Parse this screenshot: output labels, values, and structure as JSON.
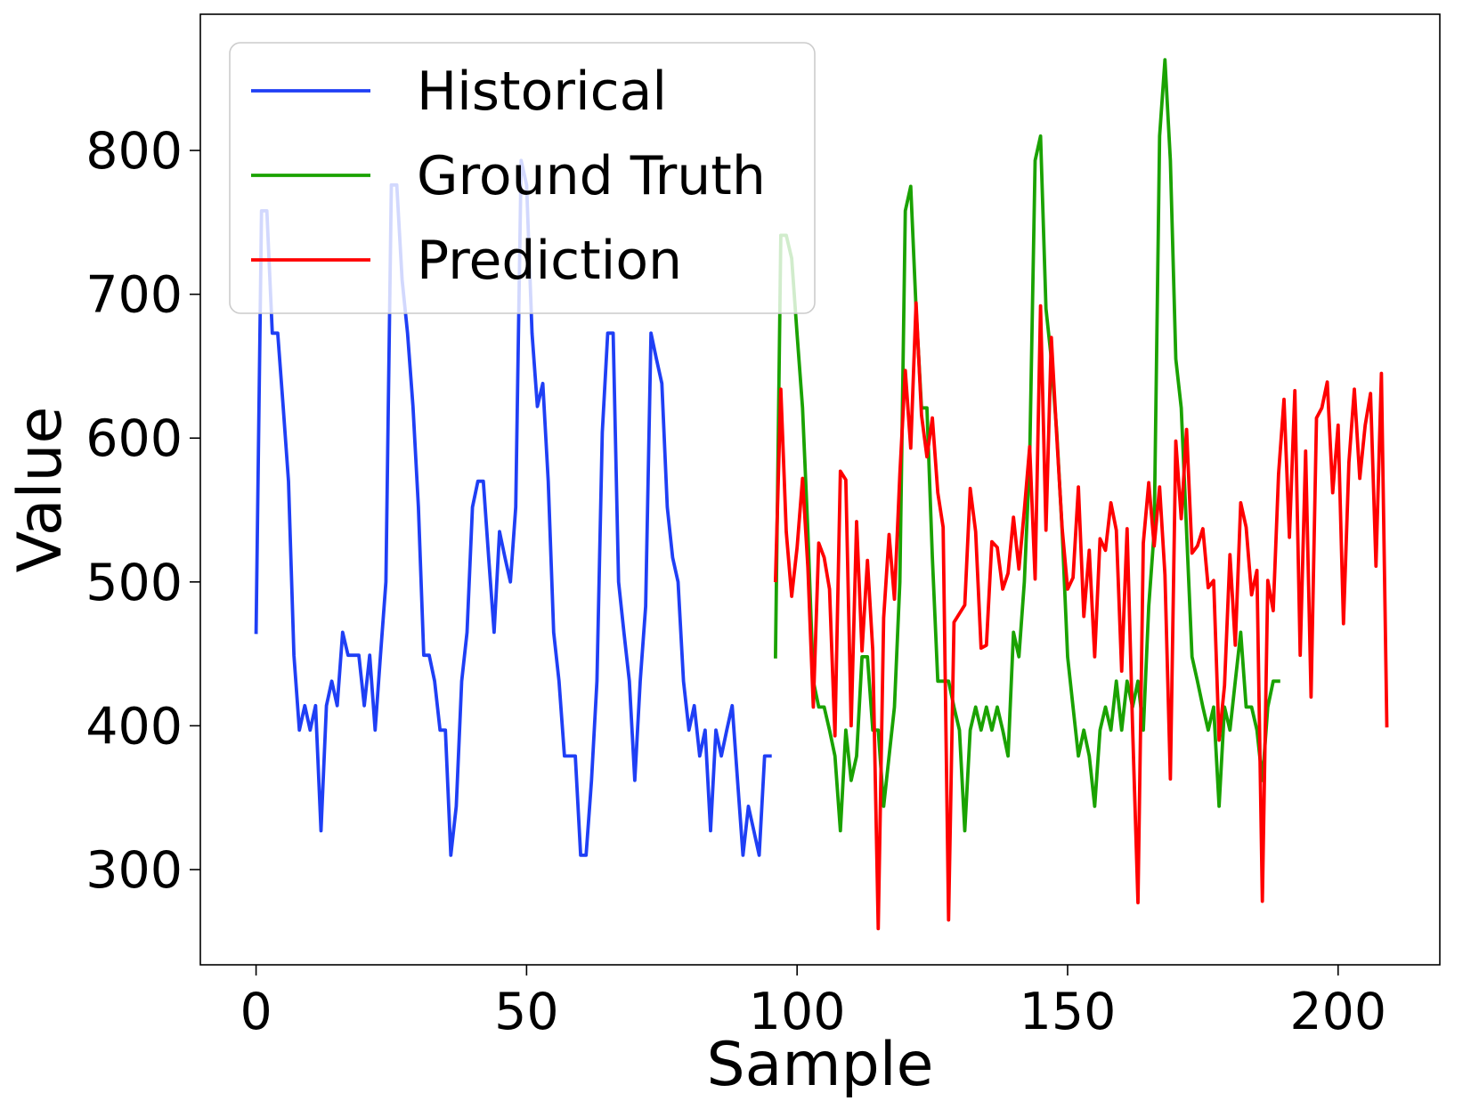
{
  "chart_data": {
    "type": "line",
    "title": "",
    "xlabel": "Sample",
    "ylabel": "Value",
    "xlim": [
      -10.3,
      218.8
    ],
    "ylim": [
      233.8,
      894.7
    ],
    "xticks": [
      0,
      50,
      100,
      150,
      200
    ],
    "yticks": [
      300,
      400,
      500,
      600,
      700,
      800
    ],
    "grid": false,
    "legend_position": "top-left",
    "series": [
      {
        "name": "Historical",
        "color": "#1f3ff5",
        "x_start": 0,
        "values": [
          465,
          758,
          758,
          673,
          673,
          622,
          570,
          449,
          397,
          414,
          397,
          414,
          327,
          414,
          431,
          414,
          465,
          449,
          449,
          449,
          414,
          449,
          397,
          449,
          500,
          776,
          776,
          710,
          673,
          622,
          552,
          449,
          449,
          431,
          397,
          397,
          310,
          344,
          431,
          465,
          552,
          570,
          570,
          517,
          465,
          535,
          517,
          500,
          552,
          793,
          776,
          673,
          622,
          638,
          570,
          465,
          431,
          379,
          379,
          379,
          310,
          310,
          362,
          431,
          604,
          673,
          673,
          500,
          465,
          431,
          362,
          431,
          483,
          673,
          655,
          638,
          552,
          517,
          500,
          431,
          397,
          414,
          379,
          397,
          327,
          397,
          379,
          397,
          414,
          362,
          310,
          344,
          327,
          310,
          379,
          379
        ]
      },
      {
        "name": "Ground Truth",
        "color": "#1aa200",
        "x_start": 96,
        "values": [
          448,
          741,
          741,
          725,
          672,
          621,
          535,
          431,
          413,
          413,
          397,
          379,
          327,
          397,
          362,
          379,
          448,
          448,
          397,
          397,
          344,
          379,
          413,
          500,
          758,
          775,
          690,
          621,
          621,
          517,
          431,
          431,
          431,
          413,
          397,
          327,
          397,
          413,
          397,
          413,
          397,
          413,
          397,
          379,
          465,
          448,
          500,
          586,
          793,
          810,
          690,
          655,
          604,
          535,
          448,
          413,
          379,
          397,
          379,
          344,
          397,
          413,
          397,
          431,
          397,
          431,
          413,
          431,
          397,
          483,
          535,
          810,
          863,
          793,
          655,
          621,
          535,
          448,
          431,
          413,
          397,
          413,
          344,
          413,
          397,
          431,
          465,
          413,
          413,
          397,
          362,
          413,
          431,
          431
        ]
      },
      {
        "name": "Prediction",
        "color": "#ff0000",
        "x_start": 96,
        "values": [
          501,
          634,
          535,
          490,
          524,
          572,
          510,
          413,
          527,
          517,
          495,
          393,
          577,
          571,
          400,
          542,
          452,
          515,
          452,
          259,
          475,
          533,
          488,
          575,
          647,
          593,
          694,
          616,
          587,
          614,
          562,
          538,
          265,
          472,
          478,
          484,
          565,
          535,
          454,
          456,
          528,
          524,
          495,
          506,
          545,
          509,
          550,
          594,
          502,
          692,
          536,
          670,
          601,
          537,
          495,
          503,
          566,
          476,
          522,
          448,
          530,
          522,
          555,
          536,
          438,
          537,
          400,
          277,
          527,
          569,
          525,
          566,
          505,
          363,
          598,
          544,
          606,
          520,
          525,
          537,
          496,
          501,
          390,
          428,
          519,
          456,
          555,
          538,
          491,
          508,
          278,
          501,
          480,
          575,
          627,
          531,
          633,
          449,
          591,
          420,
          614,
          621,
          639,
          562,
          609,
          471,
          583,
          634,
          572,
          609,
          631,
          511,
          645,
          400
        ]
      }
    ]
  }
}
